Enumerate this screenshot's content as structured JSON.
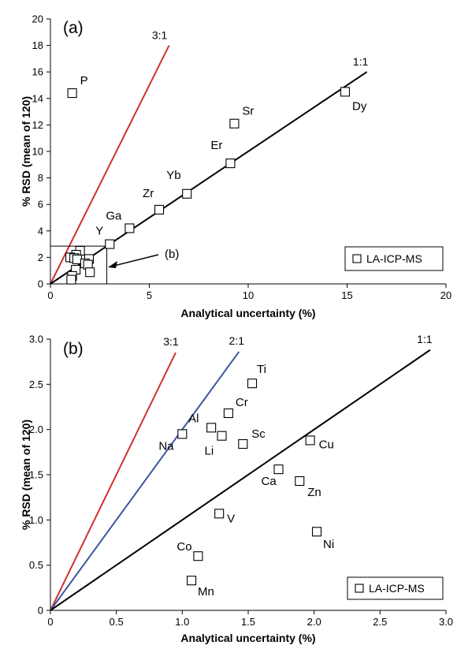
{
  "chart_data": [
    {
      "type": "scatter",
      "panel_label": "(a)",
      "xlabel": "Analytical uncertainty (%)",
      "ylabel": "% RSD (mean of 120)",
      "xlim": [
        0,
        20
      ],
      "ylim": [
        0,
        20
      ],
      "x_ticks": [
        0,
        5,
        10,
        15,
        20
      ],
      "y_ticks": [
        0,
        2,
        4,
        6,
        8,
        10,
        12,
        14,
        16,
        18,
        20
      ],
      "legend": {
        "label": "LA-ICP-MS",
        "position": "bottom-right"
      },
      "ratio_lines": [
        {
          "label": "3:1",
          "x_end": 6,
          "y_end": 18,
          "color": "#d0312d"
        },
        {
          "label": "1:1",
          "x_end": 16,
          "y_end": 16,
          "color": "#000000"
        }
      ],
      "inset_box": {
        "label": "(b)",
        "xlim": [
          0,
          3
        ],
        "ylim": [
          0,
          3
        ]
      },
      "points": [
        {
          "label": "P",
          "x": 1.1,
          "y": 14.4
        },
        {
          "label": "Dy",
          "x": 14.9,
          "y": 14.5
        },
        {
          "label": "Sr",
          "x": 9.3,
          "y": 12.1
        },
        {
          "label": "Er",
          "x": 9.1,
          "y": 9.1
        },
        {
          "label": "Yb",
          "x": 6.9,
          "y": 6.8
        },
        {
          "label": "Zr",
          "x": 5.5,
          "y": 5.6
        },
        {
          "label": "Ga",
          "x": 4.0,
          "y": 4.2
        },
        {
          "label": "Y",
          "x": 3.0,
          "y": 3.0
        },
        {
          "label": "",
          "x": 1.5,
          "y": 2.5
        },
        {
          "label": "",
          "x": 1.3,
          "y": 2.2
        },
        {
          "label": "",
          "x": 1.0,
          "y": 2.0
        },
        {
          "label": "",
          "x": 1.2,
          "y": 1.95
        },
        {
          "label": "",
          "x": 1.35,
          "y": 1.85
        },
        {
          "label": "",
          "x": 1.95,
          "y": 1.88
        },
        {
          "label": "",
          "x": 1.75,
          "y": 1.55
        },
        {
          "label": "",
          "x": 1.9,
          "y": 1.45
        },
        {
          "label": "",
          "x": 1.28,
          "y": 1.07
        },
        {
          "label": "",
          "x": 2.0,
          "y": 0.88
        },
        {
          "label": "",
          "x": 1.1,
          "y": 0.6
        },
        {
          "label": "",
          "x": 1.05,
          "y": 0.32
        }
      ]
    },
    {
      "type": "scatter",
      "panel_label": "(b)",
      "xlabel": "Analytical uncertainty (%)",
      "ylabel": "% RSD (mean of 120)",
      "xlim": [
        0,
        3
      ],
      "ylim": [
        0,
        3
      ],
      "x_ticks": [
        "0",
        "0.5",
        "1.0",
        "1.5",
        "2.0",
        "2.5",
        "3.0"
      ],
      "y_ticks": [
        "0",
        "0.5",
        "1.0",
        "1.5",
        "2.0",
        "2.5",
        "3.0"
      ],
      "legend": {
        "label": "LA-ICP-MS",
        "position": "bottom-right"
      },
      "ratio_lines": [
        {
          "label": "3:1",
          "x_end": 0.95,
          "y_end": 2.85,
          "color": "#d0312d"
        },
        {
          "label": "2:1",
          "x_end": 1.43,
          "y_end": 2.86,
          "color": "#3a56a0"
        },
        {
          "label": "1:1",
          "x_end": 2.88,
          "y_end": 2.88,
          "color": "#000000"
        }
      ],
      "points": [
        {
          "label": "Ti",
          "x": 1.53,
          "y": 2.51
        },
        {
          "label": "Cr",
          "x": 1.35,
          "y": 2.18
        },
        {
          "label": "Al",
          "x": 1.22,
          "y": 2.02
        },
        {
          "label": "Na",
          "x": 1.0,
          "y": 1.95
        },
        {
          "label": "Li",
          "x": 1.3,
          "y": 1.93
        },
        {
          "label": "Sc",
          "x": 1.46,
          "y": 1.84
        },
        {
          "label": "Cu",
          "x": 1.97,
          "y": 1.88
        },
        {
          "label": "Ca",
          "x": 1.73,
          "y": 1.56
        },
        {
          "label": "Zn",
          "x": 1.89,
          "y": 1.43
        },
        {
          "label": "V",
          "x": 1.28,
          "y": 1.07
        },
        {
          "label": "Ni",
          "x": 2.02,
          "y": 0.87
        },
        {
          "label": "Co",
          "x": 1.12,
          "y": 0.6
        },
        {
          "label": "Mn",
          "x": 1.07,
          "y": 0.33
        }
      ]
    }
  ]
}
